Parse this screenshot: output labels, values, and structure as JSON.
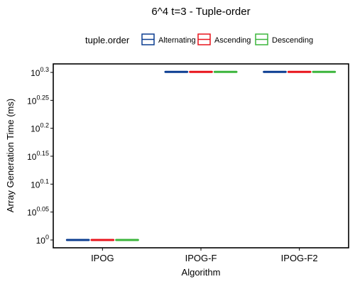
{
  "chart_data": {
    "type": "boxplot",
    "title": "6^4 t=3 - Tuple-order",
    "xlabel": "Algorithm",
    "ylabel": "Array Generation Time (ms)",
    "y_scale": "log10",
    "y_exponent_range": [
      0,
      0.3
    ],
    "y_ticks": [
      {
        "base": "10",
        "exp": "0"
      },
      {
        "base": "10",
        "exp": "0.05"
      },
      {
        "base": "10",
        "exp": "0.1"
      },
      {
        "base": "10",
        "exp": "0.15"
      },
      {
        "base": "10",
        "exp": "0.2"
      },
      {
        "base": "10",
        "exp": "0.25"
      },
      {
        "base": "10",
        "exp": "0.3"
      }
    ],
    "categories": [
      "IPOG",
      "IPOG-F",
      "IPOG-F2"
    ],
    "legend": {
      "title": "tuple.order",
      "position": "top"
    },
    "series": [
      {
        "name": "Alternating",
        "color": "#0b3d91",
        "values": [
          1,
          2,
          2
        ]
      },
      {
        "name": "Ascending",
        "color": "#e8141c",
        "values": [
          1,
          2,
          2
        ]
      },
      {
        "name": "Descending",
        "color": "#3bb53b",
        "values": [
          1,
          2,
          2
        ]
      }
    ],
    "grid": false
  }
}
